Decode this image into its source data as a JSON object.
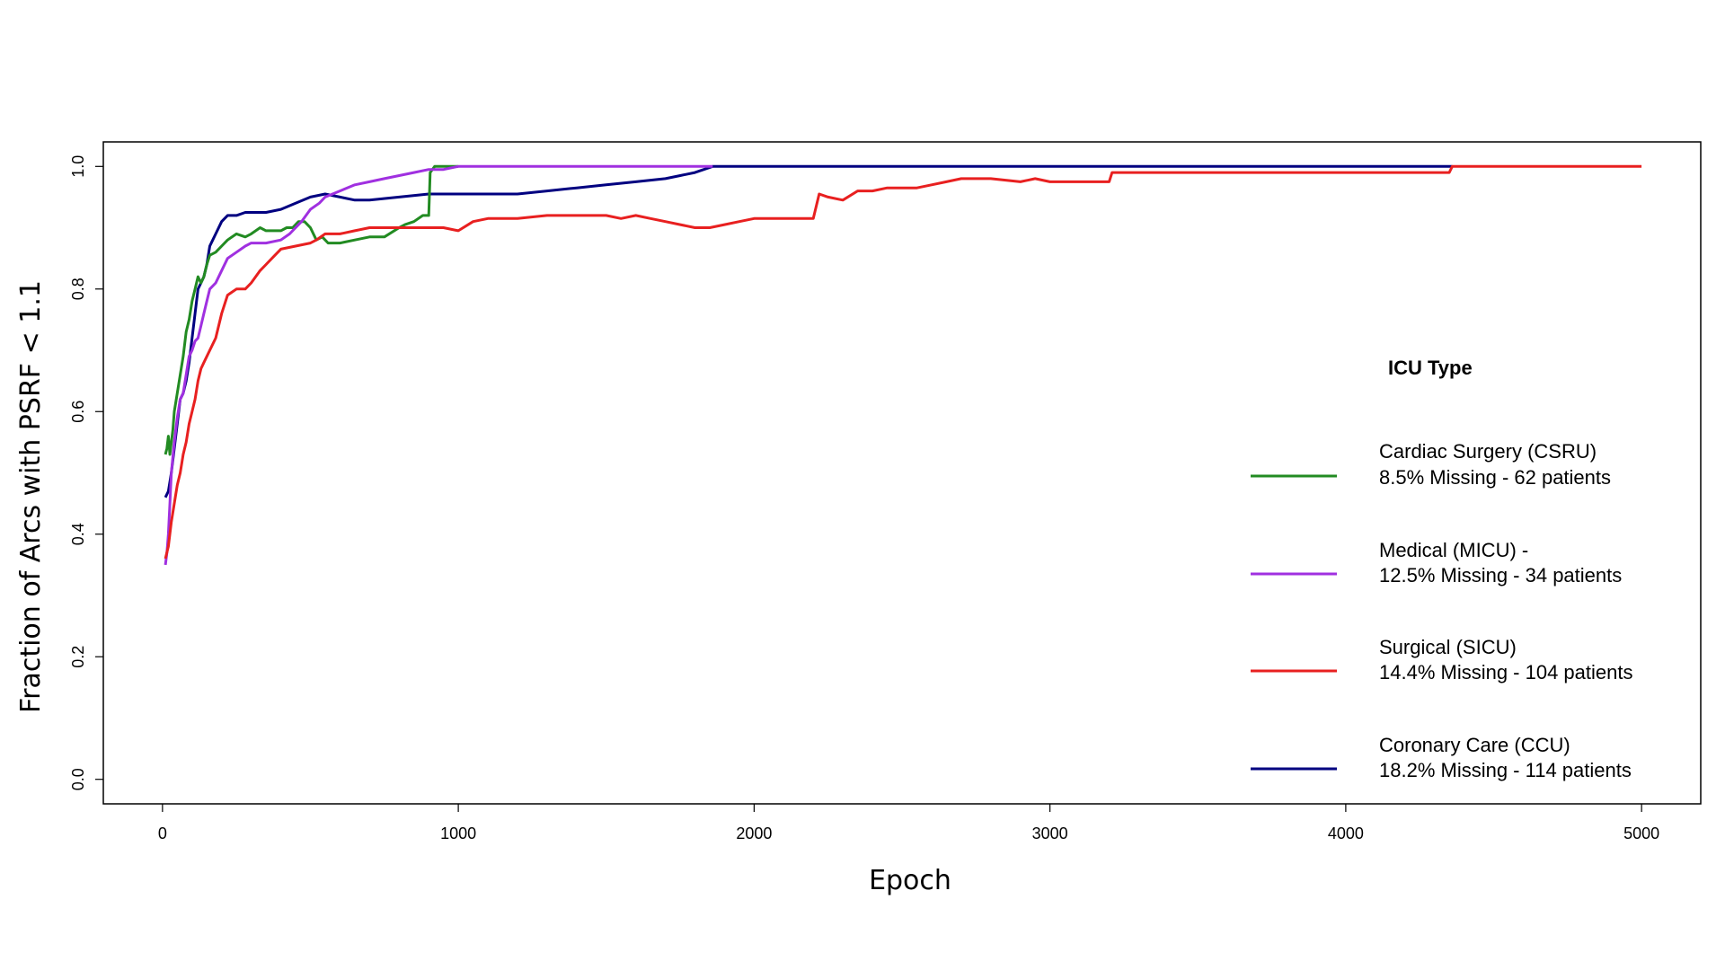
{
  "chart_data": {
    "type": "line",
    "title": "",
    "xlabel": "Epoch",
    "ylabel": "Fraction of Arcs with PSRF < 1.1",
    "xlim": [
      -200,
      5200
    ],
    "ylim": [
      -0.04,
      1.04
    ],
    "xticks": [
      0,
      1000,
      2000,
      3000,
      4000,
      5000
    ],
    "yticks": [
      0.0,
      0.2,
      0.4,
      0.6,
      0.8,
      1.0
    ],
    "xtick_labels": [
      "0",
      "1000",
      "2000",
      "3000",
      "4000",
      "5000"
    ],
    "ytick_labels": [
      "0.0",
      "0.2",
      "0.4",
      "0.6",
      "0.8",
      "1.0"
    ],
    "grid": false,
    "legend_title": "ICU Type",
    "legend_placement": "right",
    "series": [
      {
        "name": "Cardiac Surgery (CSRU)",
        "detail": "8.5% Missing - 62 patients",
        "color": "#228B22",
        "x": [
          10,
          15,
          20,
          25,
          30,
          35,
          40,
          50,
          60,
          70,
          80,
          90,
          100,
          110,
          120,
          130,
          140,
          150,
          160,
          180,
          200,
          220,
          250,
          280,
          300,
          330,
          350,
          370,
          400,
          420,
          440,
          460,
          480,
          500,
          520,
          540,
          560,
          580,
          600,
          650,
          700,
          750,
          800,
          820,
          850,
          880,
          900,
          905,
          920,
          960,
          980,
          1000
        ],
        "y": [
          0.53,
          0.54,
          0.56,
          0.53,
          0.55,
          0.57,
          0.6,
          0.63,
          0.66,
          0.69,
          0.73,
          0.75,
          0.78,
          0.8,
          0.82,
          0.81,
          0.82,
          0.84,
          0.855,
          0.86,
          0.87,
          0.88,
          0.89,
          0.885,
          0.89,
          0.9,
          0.895,
          0.895,
          0.895,
          0.9,
          0.9,
          0.91,
          0.91,
          0.9,
          0.88,
          0.885,
          0.875,
          0.875,
          0.875,
          0.88,
          0.885,
          0.885,
          0.9,
          0.905,
          0.91,
          0.92,
          0.92,
          0.99,
          1.0,
          1.0,
          1.0,
          1.0
        ]
      },
      {
        "name": "Medical (MICU) -",
        "detail": "12.5% Missing - 34 patients",
        "color": "#A030E0",
        "x": [
          10,
          15,
          20,
          25,
          30,
          40,
          50,
          60,
          70,
          80,
          90,
          100,
          110,
          120,
          130,
          140,
          150,
          160,
          180,
          200,
          220,
          250,
          280,
          300,
          350,
          400,
          430,
          450,
          470,
          500,
          530,
          550,
          600,
          650,
          700,
          750,
          800,
          850,
          900,
          950,
          1000,
          1860
        ],
        "y": [
          0.35,
          0.37,
          0.4,
          0.45,
          0.5,
          0.55,
          0.59,
          0.62,
          0.63,
          0.66,
          0.69,
          0.7,
          0.715,
          0.72,
          0.74,
          0.76,
          0.78,
          0.8,
          0.81,
          0.83,
          0.85,
          0.86,
          0.87,
          0.875,
          0.875,
          0.88,
          0.89,
          0.9,
          0.91,
          0.93,
          0.94,
          0.95,
          0.96,
          0.97,
          0.975,
          0.98,
          0.985,
          0.99,
          0.995,
          0.995,
          1.0,
          1.0
        ]
      },
      {
        "name": "Surgical (SICU)",
        "detail": "14.4% Missing - 104 patients",
        "color": "#E82020",
        "x": [
          10,
          20,
          30,
          40,
          50,
          60,
          70,
          80,
          90,
          100,
          110,
          120,
          130,
          140,
          160,
          180,
          200,
          220,
          250,
          280,
          300,
          330,
          350,
          380,
          400,
          450,
          500,
          520,
          550,
          600,
          650,
          700,
          750,
          800,
          850,
          900,
          950,
          1000,
          1050,
          1100,
          1200,
          1300,
          1400,
          1500,
          1550,
          1600,
          1650,
          1700,
          1750,
          1800,
          1850,
          1900,
          1950,
          2000,
          2100,
          2150,
          2200,
          2220,
          2250,
          2300,
          2350,
          2400,
          2450,
          2500,
          2550,
          2600,
          2650,
          2700,
          2800,
          2900,
          2950,
          3000,
          3100,
          3200,
          3210,
          3500,
          4000,
          4350,
          4360,
          4500,
          5000
        ],
        "y": [
          0.36,
          0.38,
          0.42,
          0.45,
          0.48,
          0.5,
          0.53,
          0.55,
          0.58,
          0.6,
          0.62,
          0.65,
          0.67,
          0.68,
          0.7,
          0.72,
          0.76,
          0.79,
          0.8,
          0.8,
          0.81,
          0.83,
          0.84,
          0.855,
          0.865,
          0.87,
          0.875,
          0.88,
          0.89,
          0.89,
          0.895,
          0.9,
          0.9,
          0.9,
          0.9,
          0.9,
          0.9,
          0.895,
          0.91,
          0.915,
          0.915,
          0.92,
          0.92,
          0.92,
          0.915,
          0.92,
          0.915,
          0.91,
          0.905,
          0.9,
          0.9,
          0.905,
          0.91,
          0.915,
          0.915,
          0.915,
          0.915,
          0.955,
          0.95,
          0.945,
          0.96,
          0.96,
          0.965,
          0.965,
          0.965,
          0.97,
          0.975,
          0.98,
          0.98,
          0.975,
          0.98,
          0.975,
          0.975,
          0.975,
          0.99,
          0.99,
          0.99,
          0.99,
          1.0,
          1.0,
          1.0
        ]
      },
      {
        "name": "Coronary Care (CCU)",
        "detail": "18.2% Missing - 114 patients",
        "color": "#000080",
        "x": [
          10,
          20,
          30,
          40,
          50,
          60,
          70,
          80,
          90,
          100,
          110,
          120,
          130,
          140,
          150,
          160,
          170,
          180,
          200,
          220,
          250,
          280,
          300,
          350,
          400,
          450,
          500,
          550,
          600,
          650,
          700,
          800,
          900,
          1000,
          1100,
          1200,
          1300,
          1400,
          1500,
          1600,
          1700,
          1750,
          1800,
          1860,
          1900,
          2000,
          3000,
          4000,
          4360
        ],
        "y": [
          0.46,
          0.47,
          0.5,
          0.54,
          0.58,
          0.62,
          0.63,
          0.65,
          0.68,
          0.72,
          0.76,
          0.8,
          0.81,
          0.82,
          0.84,
          0.87,
          0.88,
          0.89,
          0.91,
          0.92,
          0.92,
          0.925,
          0.925,
          0.925,
          0.93,
          0.94,
          0.95,
          0.955,
          0.95,
          0.945,
          0.945,
          0.95,
          0.955,
          0.955,
          0.955,
          0.955,
          0.96,
          0.965,
          0.97,
          0.975,
          0.98,
          0.985,
          0.99,
          1.0,
          1.0,
          1.0,
          1.0,
          1.0,
          1.0
        ]
      }
    ]
  }
}
